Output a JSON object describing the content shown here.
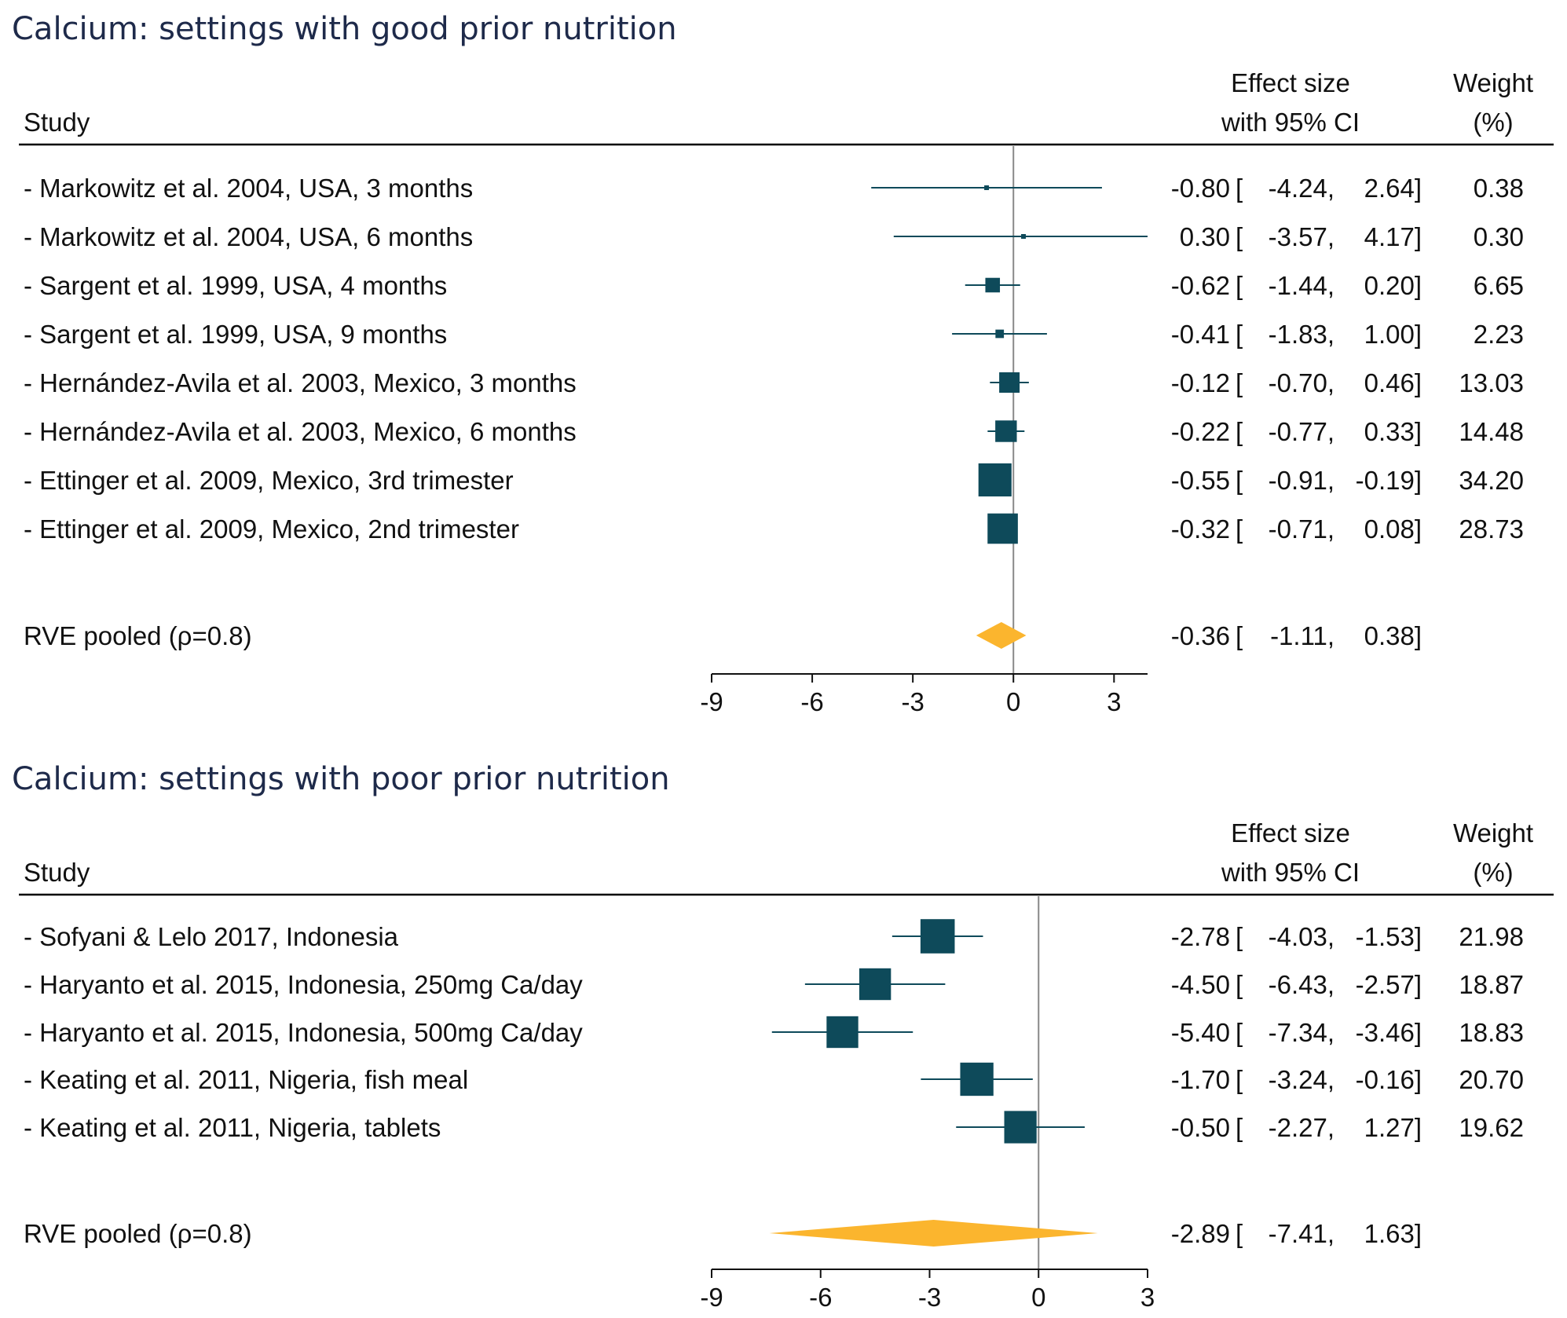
{
  "colors": {
    "title": "#1e2a4a",
    "marker": "#0e4a5a",
    "pooled": "#fbb52e",
    "rule": "#000000",
    "zero_line": "#888888"
  },
  "header": {
    "study": "Study",
    "effect_line1": "Effect size",
    "effect_line2": "with 95% CI",
    "weight_line1": "Weight",
    "weight_line2": "(%)"
  },
  "chart_data": [
    {
      "type": "forest",
      "title": "Calcium: settings with good prior nutrition",
      "xlim": [
        -9,
        4
      ],
      "xticks": [
        -9,
        -6,
        -3,
        0,
        3
      ],
      "xtick_labels": [
        "-9",
        "-6",
        "-3",
        "0",
        "3"
      ],
      "studies": [
        {
          "label": "- Markowitz et al. 2004, USA, 3 months",
          "es": -0.8,
          "lo": -4.24,
          "hi": 2.64,
          "weight": 0.38,
          "es_text": "-0.80",
          "lo_text": "-4.24,",
          "hi_text": "2.64]",
          "w_text": "0.38"
        },
        {
          "label": "- Markowitz et al. 2004, USA, 6 months",
          "es": 0.3,
          "lo": -3.57,
          "hi": 4.17,
          "weight": 0.3,
          "es_text": "0.30",
          "lo_text": "-3.57,",
          "hi_text": "4.17]",
          "w_text": "0.30"
        },
        {
          "label": "- Sargent et al. 1999, USA, 4 months",
          "es": -0.62,
          "lo": -1.44,
          "hi": 0.2,
          "weight": 6.65,
          "es_text": "-0.62",
          "lo_text": "-1.44,",
          "hi_text": "0.20]",
          "w_text": "6.65"
        },
        {
          "label": "- Sargent et al. 1999, USA, 9 months",
          "es": -0.41,
          "lo": -1.83,
          "hi": 1.0,
          "weight": 2.23,
          "es_text": "-0.41",
          "lo_text": "-1.83,",
          "hi_text": "1.00]",
          "w_text": "2.23"
        },
        {
          "label": "- Hernández-Avila et al. 2003, Mexico, 3 months",
          "es": -0.12,
          "lo": -0.7,
          "hi": 0.46,
          "weight": 13.03,
          "es_text": "-0.12",
          "lo_text": "-0.70,",
          "hi_text": "0.46]",
          "w_text": "13.03"
        },
        {
          "label": "- Hernández-Avila et al. 2003, Mexico, 6 months",
          "es": -0.22,
          "lo": -0.77,
          "hi": 0.33,
          "weight": 14.48,
          "es_text": "-0.22",
          "lo_text": "-0.77,",
          "hi_text": "0.33]",
          "w_text": "14.48"
        },
        {
          "label": "- Ettinger et al. 2009, Mexico, 3rd trimester",
          "es": -0.55,
          "lo": -0.91,
          "hi": -0.19,
          "weight": 34.2,
          "es_text": "-0.55",
          "lo_text": "-0.91,",
          "hi_text": "-0.19]",
          "w_text": "34.20"
        },
        {
          "label": "- Ettinger et al. 2009, Mexico, 2nd trimester",
          "es": -0.32,
          "lo": -0.71,
          "hi": 0.08,
          "weight": 28.73,
          "es_text": "-0.32",
          "lo_text": "-0.71,",
          "hi_text": "0.08]",
          "w_text": "28.73"
        }
      ],
      "pooled": {
        "label": "RVE pooled (ρ=0.8)",
        "es": -0.36,
        "lo": -1.11,
        "hi": 0.38,
        "es_text": "-0.36",
        "lo_text": "-1.11,",
        "hi_text": "0.38]"
      }
    },
    {
      "type": "forest",
      "title": "Calcium: settings with poor prior nutrition",
      "xlim": [
        -9,
        3
      ],
      "xticks": [
        -9,
        -6,
        -3,
        0,
        3
      ],
      "xtick_labels": [
        "-9",
        "-6",
        "-3",
        "0",
        "3"
      ],
      "studies": [
        {
          "label": "- Sofyani & Lelo 2017, Indonesia",
          "es": -2.78,
          "lo": -4.03,
          "hi": -1.53,
          "weight": 21.98,
          "es_text": "-2.78",
          "lo_text": "-4.03,",
          "hi_text": "-1.53]",
          "w_text": "21.98"
        },
        {
          "label": "- Haryanto et al. 2015, Indonesia, 250mg Ca/day",
          "es": -4.5,
          "lo": -6.43,
          "hi": -2.57,
          "weight": 18.87,
          "es_text": "-4.50",
          "lo_text": "-6.43,",
          "hi_text": "-2.57]",
          "w_text": "18.87"
        },
        {
          "label": "- Haryanto et al. 2015, Indonesia, 500mg Ca/day",
          "es": -5.4,
          "lo": -7.34,
          "hi": -3.46,
          "weight": 18.83,
          "es_text": "-5.40",
          "lo_text": "-7.34,",
          "hi_text": "-3.46]",
          "w_text": "18.83"
        },
        {
          "label": "- Keating et al. 2011, Nigeria, fish meal",
          "es": -1.7,
          "lo": -3.24,
          "hi": -0.16,
          "weight": 20.7,
          "es_text": "-1.70",
          "lo_text": "-3.24,",
          "hi_text": "-0.16]",
          "w_text": "20.70"
        },
        {
          "label": "- Keating et al. 2011, Nigeria, tablets",
          "es": -0.5,
          "lo": -2.27,
          "hi": 1.27,
          "weight": 19.62,
          "es_text": "-0.50",
          "lo_text": "-2.27,",
          "hi_text": "1.27]",
          "w_text": "19.62"
        }
      ],
      "pooled": {
        "label": "RVE pooled (ρ=0.8)",
        "es": -2.89,
        "lo": -7.41,
        "hi": 1.63,
        "es_text": "-2.89",
        "lo_text": "-7.41,",
        "hi_text": "1.63]"
      }
    }
  ]
}
